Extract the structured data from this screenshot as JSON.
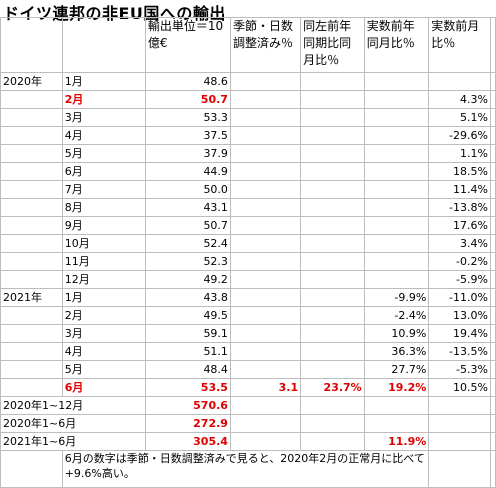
{
  "title": "ドイツ連邦の非EU国への輸出",
  "headers": {
    "col_c": "輸出単位＝10億€",
    "col_d": "季節・日数調整済み％",
    "col_e": "同左前年同期比同月比％",
    "col_f": "実数前年同月比％",
    "col_g": "実数前月比％"
  },
  "rows": [
    {
      "year": "2020年",
      "month": "1月",
      "value": "48.6",
      "sa": "",
      "yoy_sa": "",
      "yoy": "",
      "mom": ""
    },
    {
      "year": "",
      "month": "2月",
      "value": "50.7",
      "sa": "",
      "yoy_sa": "",
      "yoy": "",
      "mom": "4.3%",
      "highlight": true
    },
    {
      "year": "",
      "month": "3月",
      "value": "53.3",
      "sa": "",
      "yoy_sa": "",
      "yoy": "",
      "mom": "5.1%"
    },
    {
      "year": "",
      "month": "4月",
      "value": "37.5",
      "sa": "",
      "yoy_sa": "",
      "yoy": "",
      "mom": "-29.6%"
    },
    {
      "year": "",
      "month": "5月",
      "value": "37.9",
      "sa": "",
      "yoy_sa": "",
      "yoy": "",
      "mom": "1.1%"
    },
    {
      "year": "",
      "month": "6月",
      "value": "44.9",
      "sa": "",
      "yoy_sa": "",
      "yoy": "",
      "mom": "18.5%"
    },
    {
      "year": "",
      "month": "7月",
      "value": "50.0",
      "sa": "",
      "yoy_sa": "",
      "yoy": "",
      "mom": "11.4%"
    },
    {
      "year": "",
      "month": "8月",
      "value": "43.1",
      "sa": "",
      "yoy_sa": "",
      "yoy": "",
      "mom": "-13.8%"
    },
    {
      "year": "",
      "month": "9月",
      "value": "50.7",
      "sa": "",
      "yoy_sa": "",
      "yoy": "",
      "mom": "17.6%"
    },
    {
      "year": "",
      "month": "10月",
      "value": "52.4",
      "sa": "",
      "yoy_sa": "",
      "yoy": "",
      "mom": "3.4%"
    },
    {
      "year": "",
      "month": "11月",
      "value": "52.3",
      "sa": "",
      "yoy_sa": "",
      "yoy": "",
      "mom": "-0.2%"
    },
    {
      "year": "",
      "month": "12月",
      "value": "49.2",
      "sa": "",
      "yoy_sa": "",
      "yoy": "",
      "mom": "-5.9%"
    },
    {
      "year": "2021年",
      "month": "1月",
      "value": "43.8",
      "sa": "",
      "yoy_sa": "",
      "yoy": "-9.9%",
      "mom": "-11.0%"
    },
    {
      "year": "",
      "month": "2月",
      "value": "49.5",
      "sa": "",
      "yoy_sa": "",
      "yoy": "-2.4%",
      "mom": "13.0%"
    },
    {
      "year": "",
      "month": "3月",
      "value": "59.1",
      "sa": "",
      "yoy_sa": "",
      "yoy": "10.9%",
      "mom": "19.4%"
    },
    {
      "year": "",
      "month": "4月",
      "value": "51.1",
      "sa": "",
      "yoy_sa": "",
      "yoy": "36.3%",
      "mom": "-13.5%"
    },
    {
      "year": "",
      "month": "5月",
      "value": "48.4",
      "sa": "",
      "yoy_sa": "",
      "yoy": "27.7%",
      "mom": "-5.3%"
    },
    {
      "year": "",
      "month": "6月",
      "value": "53.5",
      "sa": "3.1",
      "yoy_sa": "23.7%",
      "yoy": "19.2%",
      "mom": "10.5%",
      "highlight": true
    }
  ],
  "totals": [
    {
      "label": "2020年1~12月",
      "value": "570.6",
      "yoy": ""
    },
    {
      "label": "2020年1~6月",
      "value": "272.9",
      "yoy": ""
    },
    {
      "label": "2021年1~6月",
      "value": "305.4",
      "yoy": "11.9%"
    }
  ],
  "note": "6月の数字は季節・日数調整済みで見ると、2020年2月の正常月に比べて+9.6%高い。",
  "colors": {
    "red": "#e00000",
    "grid": "#bdbdbd"
  }
}
